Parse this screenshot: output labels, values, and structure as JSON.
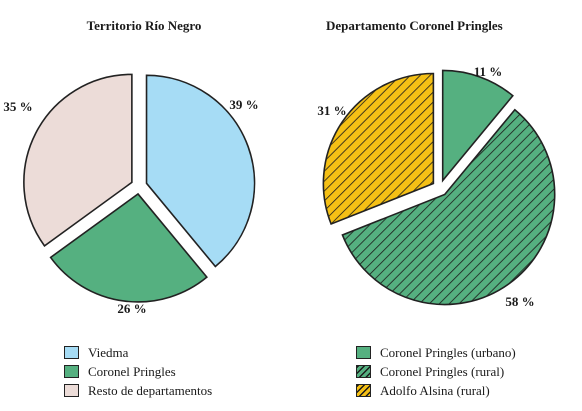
{
  "chart_data": [
    {
      "type": "pie",
      "title": "Territorio Río Negro",
      "slices": [
        {
          "name": "Viedma",
          "value": 39,
          "label": "39 %",
          "color": "#a6dcf5",
          "pattern": "solid"
        },
        {
          "name": "Coronel Pringles",
          "value": 26,
          "label": "26 %",
          "color": "#55b080",
          "pattern": "solid"
        },
        {
          "name": "Resto de departamentos",
          "value": 35,
          "label": "35 %",
          "color": "#ecdcd8",
          "pattern": "solid"
        }
      ]
    },
    {
      "type": "pie",
      "title": "Departamento Coronel Pringles",
      "slices": [
        {
          "name": "Coronel Pringles (urbano)",
          "value": 11,
          "label": "11 %",
          "color": "#55b080",
          "pattern": "solid"
        },
        {
          "name": "Coronel Pringles (rural)",
          "value": 58,
          "label": "58 %",
          "color": "#55b080",
          "pattern": "hatch"
        },
        {
          "name": "Adolfo Alsina (rural)",
          "value": 31,
          "label": "31 %",
          "color": "#f5c015",
          "pattern": "hatch"
        }
      ]
    }
  ]
}
